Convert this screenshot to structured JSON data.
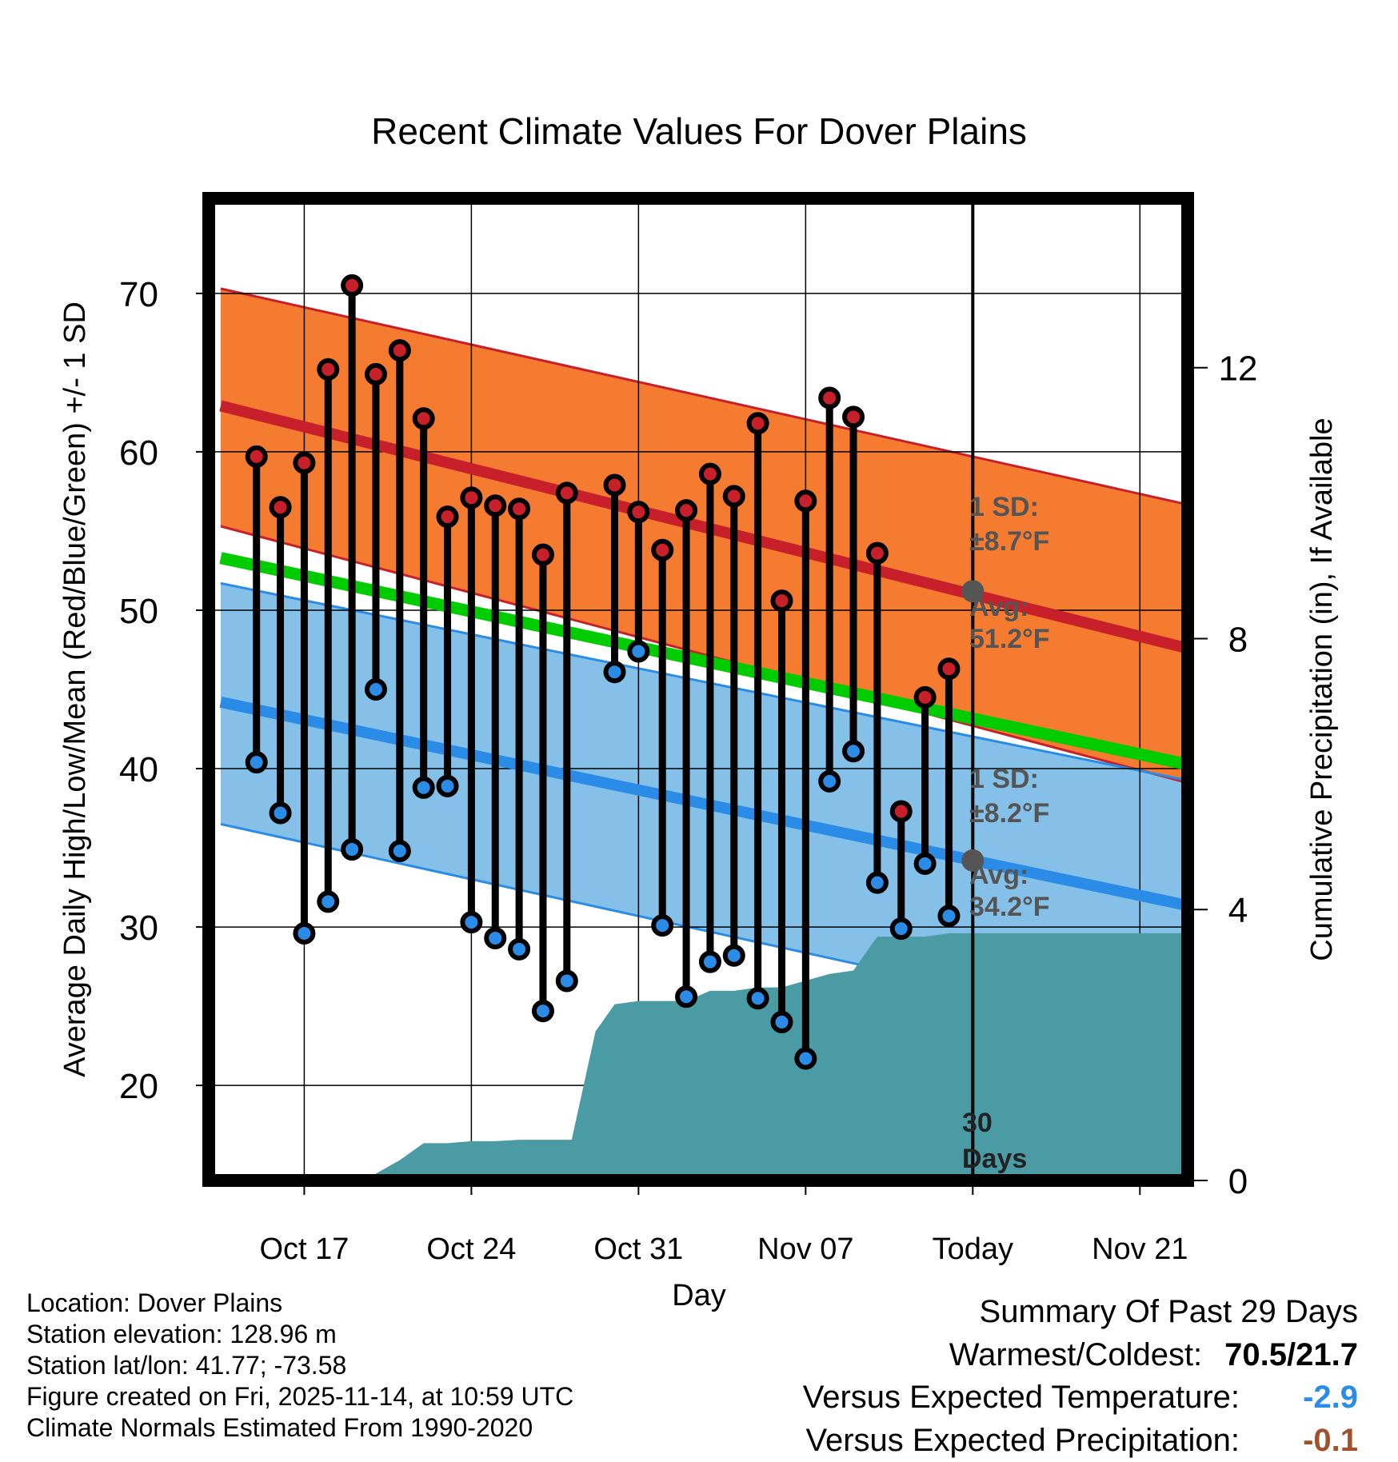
{
  "chart_data": {
    "type": "line",
    "title": "Recent Climate Values For Dover Plains",
    "xlabel": "Day",
    "ylabel_left": "Average Daily High/Low/Mean (Red/Blue/Green) +/- 1 SD",
    "ylabel_right": "Cumulative Precipitation (in), If Available",
    "xlim_day_offset": [
      -32,
      9
    ],
    "ylim": [
      14,
      76
    ],
    "ylim_right": [
      0,
      14.5
    ],
    "x_ticks": [
      {
        "day": -28,
        "label": "Oct 17"
      },
      {
        "day": -21,
        "label": "Oct 24"
      },
      {
        "day": -14,
        "label": "Oct 31"
      },
      {
        "day": -7,
        "label": "Nov 07"
      },
      {
        "day": 0,
        "label": "Today"
      },
      {
        "day": 7,
        "label": "Nov 21"
      }
    ],
    "y_ticks_left": [
      20,
      30,
      40,
      50,
      60,
      70
    ],
    "y_ticks_left_labels": [
      "20",
      "30",
      "40",
      "50",
      "60",
      "70"
    ],
    "y_ticks_right": [
      0,
      4,
      8,
      12
    ],
    "y_ticks_right_labels": [
      "0",
      "4",
      "8",
      "12"
    ],
    "normals": {
      "start_day": -31.5,
      "end_day": 9.5,
      "high_avg": [
        62.9,
        47.4
      ],
      "high_upper": [
        70.3,
        56.5
      ],
      "high_lower": [
        55.3,
        38.9
      ],
      "low_avg": [
        44.2,
        31.2
      ],
      "low_upper": [
        51.7,
        39.1
      ],
      "low_lower": [
        36.5,
        22.9
      ],
      "mean_avg": [
        53.3,
        40.1
      ]
    },
    "series": [
      {
        "name": "High",
        "color": "#c8202a",
        "days": [
          -30,
          -29,
          -28,
          -27,
          -26,
          -25,
          -24,
          -23,
          -22,
          -21,
          -20,
          -19,
          -18,
          -17,
          -15,
          -14,
          -13,
          -12,
          -11,
          -10,
          -9,
          -8,
          -7,
          -6,
          -5,
          -4,
          -3,
          -2,
          -1
        ],
        "values": [
          59.7,
          56.5,
          59.3,
          65.2,
          70.5,
          64.9,
          66.4,
          62.1,
          55.9,
          57.1,
          56.6,
          56.4,
          53.5,
          57.4,
          57.9,
          56.2,
          53.8,
          56.3,
          58.6,
          57.2,
          61.8,
          50.6,
          56.9,
          63.4,
          62.2,
          53.6,
          37.3,
          44.5,
          46.3
        ]
      },
      {
        "name": "Low",
        "color": "#2a8ce6",
        "days": [
          -30,
          -29,
          -28,
          -27,
          -26,
          -25,
          -24,
          -23,
          -22,
          -21,
          -20,
          -19,
          -18,
          -17,
          -15,
          -14,
          -13,
          -12,
          -11,
          -10,
          -9,
          -8,
          -7,
          -6,
          -5,
          -4,
          -3,
          -2,
          -1
        ],
        "values": [
          40.4,
          37.2,
          29.6,
          31.6,
          34.9,
          45.0,
          34.8,
          38.8,
          38.9,
          30.3,
          29.3,
          28.6,
          24.7,
          26.6,
          46.1,
          47.4,
          30.1,
          25.6,
          27.8,
          28.2,
          25.5,
          24.0,
          21.7,
          39.2,
          41.1,
          32.8,
          29.9,
          34.0,
          30.7
        ]
      }
    ],
    "precip_cumulative": {
      "days": [
        -32,
        -25.3,
        -25,
        -24.5,
        -24,
        -23,
        -22,
        -21,
        -20,
        -19,
        -18,
        -17,
        -16.8,
        -15.8,
        -15,
        -14,
        -13,
        -12,
        -11,
        -10,
        -9,
        -8,
        -7,
        -6,
        -5,
        -4,
        -3,
        -2,
        -1,
        0,
        9.5
      ],
      "values": [
        0,
        0,
        0.1,
        0.2,
        0.3,
        0.55,
        0.55,
        0.58,
        0.58,
        0.6,
        0.6,
        0.6,
        0.6,
        2.2,
        2.6,
        2.65,
        2.65,
        2.65,
        2.8,
        2.8,
        2.85,
        2.85,
        2.95,
        3.05,
        3.1,
        3.6,
        3.6,
        3.6,
        3.65,
        3.65,
        3.65
      ]
    },
    "annotations": {
      "high_sd_label": "1 SD:",
      "high_sd_value": "±8.7°F",
      "high_avg_label": "Avg:",
      "high_avg_value": "51.2°F",
      "high_avg_today": 51.2,
      "low_sd_label": "1 SD:",
      "low_sd_value": "±8.2°F",
      "low_avg_label": "Avg:",
      "low_avg_value": "34.2°F",
      "low_avg_today": 34.2,
      "days_label_1": "30",
      "days_label_2": "Days"
    },
    "colors": {
      "high": "#c8202a",
      "high_band": "#f47b30",
      "low": "#2a8ce6",
      "low_band": "#84c0e8",
      "mean": "#00cc00",
      "precip": "#4a9ba4",
      "annotation": "#555555"
    }
  },
  "info": {
    "location": "Location: Dover Plains",
    "elevation": "Station elevation: 128.96 m",
    "latlon": "Station lat/lon: 41.77; -73.58",
    "created": "Figure created on Fri, 2025-11-14, at 10:59 UTC",
    "normals": "Climate Normals Estimated From 1990-2020"
  },
  "summary": {
    "title": "Summary Of Past 29 Days",
    "warmest_coldest_label": "Warmest/Coldest:",
    "warmest_coldest_value": "70.5/21.7",
    "temp_label": "Versus Expected Temperature:",
    "temp_value": "-2.9",
    "temp_color": "#2a8ce6",
    "precip_label": "Versus Expected Precipitation:",
    "precip_value": "-0.1",
    "precip_color": "#a0522d"
  }
}
